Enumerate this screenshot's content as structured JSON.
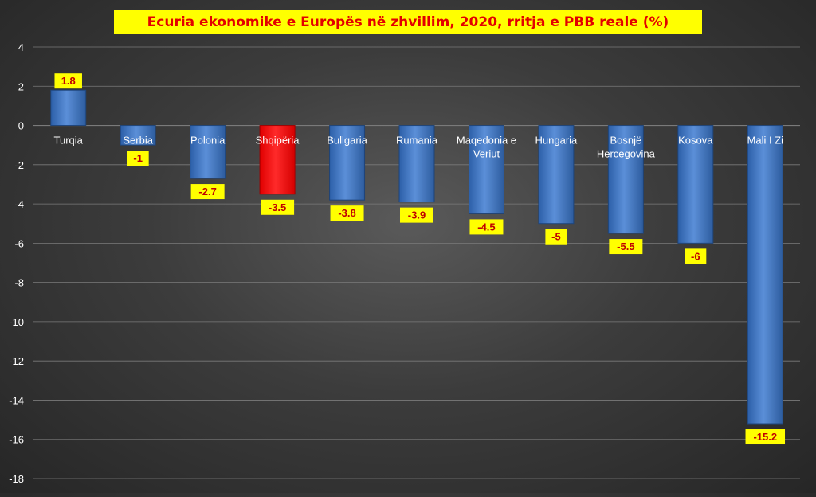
{
  "chart_data": {
    "type": "bar",
    "title": "Ecuria ekonomike e Europës në zhvillim, 2020, rritja e PBB reale (%)",
    "xlabel": "",
    "ylabel": "",
    "ylim": [
      -18,
      4
    ],
    "yticks": [
      4,
      2,
      0,
      -2,
      -4,
      -6,
      -8,
      -10,
      -12,
      -14,
      -16,
      -18
    ],
    "grid": true,
    "legend": "none",
    "categories": [
      [
        "Turqia"
      ],
      [
        "Serbia"
      ],
      [
        "Polonia"
      ],
      [
        "Shqipëria"
      ],
      [
        "Bullgaria"
      ],
      [
        "Rumania"
      ],
      [
        "Maqedonia e",
        "Veriut"
      ],
      [
        "Hungaria"
      ],
      [
        "Bosnjë",
        "Hercegovina"
      ],
      [
        "Kosova"
      ],
      [
        "Mali I Zi"
      ]
    ],
    "values": [
      1.8,
      -1,
      -2.7,
      -3.5,
      -3.8,
      -3.9,
      -4.5,
      -5,
      -5.5,
      -6,
      -15.2
    ],
    "value_labels": [
      "1.8",
      "-1",
      "-2.7",
      "-3.5",
      "-3.8",
      "-3.9",
      "-4.5",
      "-5",
      "-5.5",
      "-6",
      "-15.2"
    ],
    "highlight_index": 3,
    "colors": {
      "bar": "#4a7fc8",
      "bar_highlight": "#ff0000",
      "label_bg": "#ffff00",
      "label_text": "#c00000",
      "title_bg": "#ffff00",
      "title_text": "#e30000",
      "grid": "#7a7a7a",
      "axis_text": "#ffffff"
    }
  }
}
